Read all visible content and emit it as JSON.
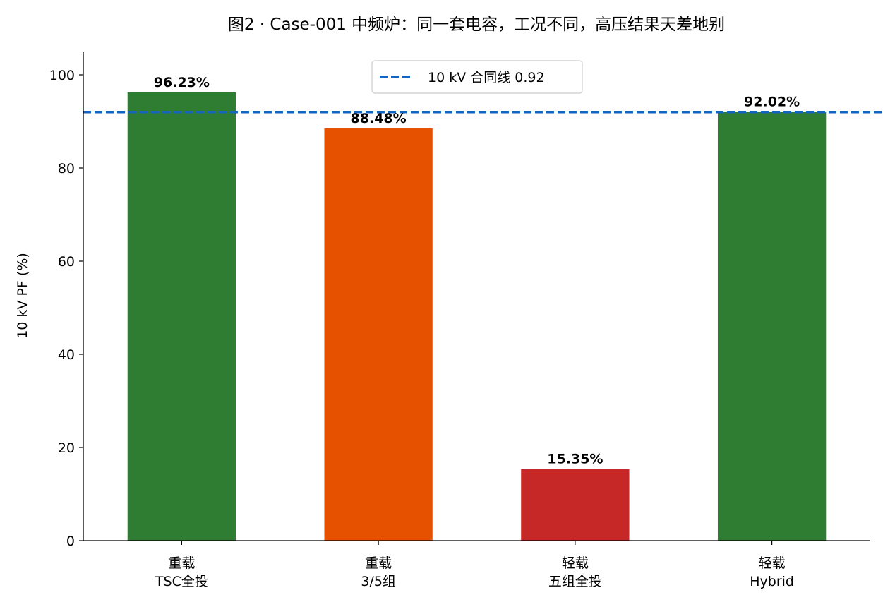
{
  "chart_data": {
    "type": "bar",
    "title": "图2 · Case-001 中频炉：同一套电容，工况不同，高压结果天差地别",
    "xlabel": "",
    "ylabel": "10 kV PF (%)",
    "ylim": [
      0,
      105
    ],
    "yticks": [
      0,
      20,
      40,
      60,
      80,
      100
    ],
    "grid": false,
    "legend_position": "top-center",
    "categories": [
      [
        "重载",
        "TSC全投"
      ],
      [
        "重载",
        "3/5组"
      ],
      [
        "轻载",
        "五组全投"
      ],
      [
        "轻载",
        "Hybrid"
      ]
    ],
    "values": [
      96.23,
      88.48,
      15.35,
      92.02
    ],
    "value_labels": [
      "96.23%",
      "88.48%",
      "15.35%",
      "92.02%"
    ],
    "bar_colors": [
      "#2e7d32",
      "#e65100",
      "#c62828",
      "#2e7d32"
    ],
    "reference_line": {
      "label": "10 kV 合同线 0.92",
      "value": 92,
      "color": "#1565c0",
      "style": "dashed"
    }
  }
}
